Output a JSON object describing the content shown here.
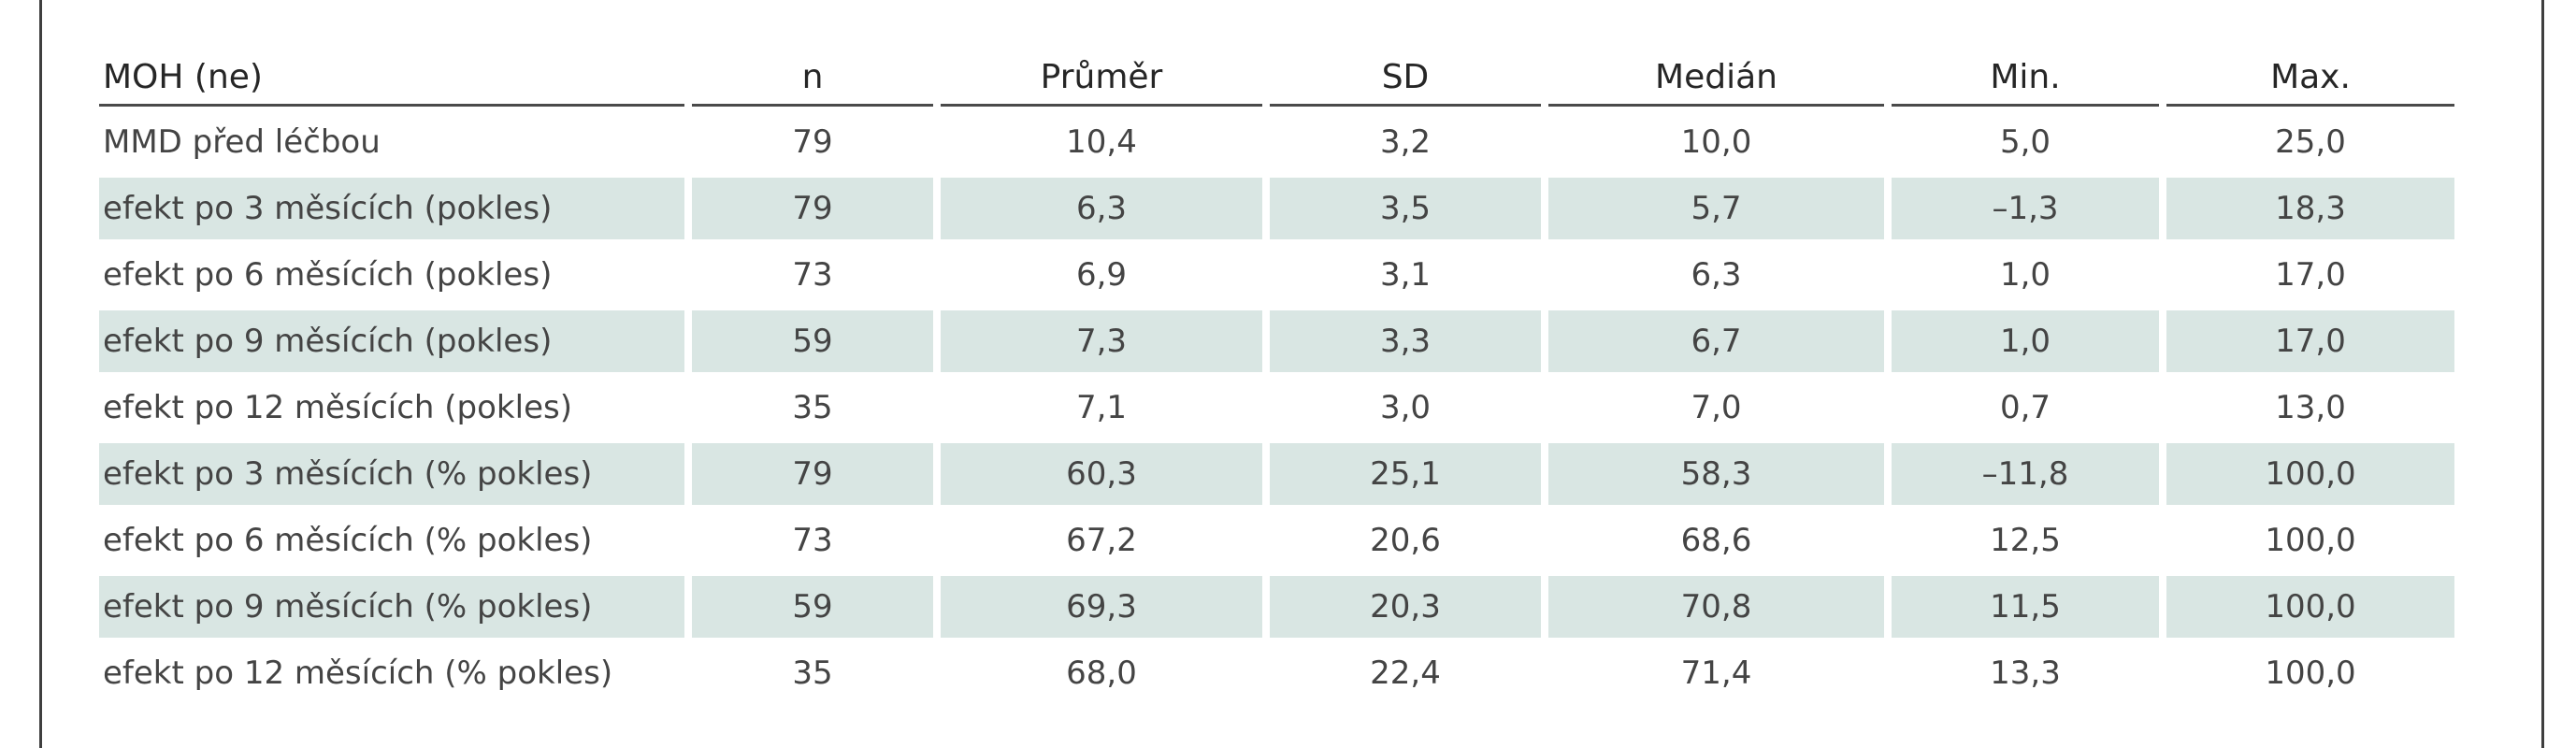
{
  "table": {
    "headers": [
      "MOH (ne)",
      "n",
      "Průměr",
      "SD",
      "Medián",
      "Min.",
      "Max."
    ],
    "rows": [
      [
        "MMD před léčbou",
        "79",
        "10,4",
        "3,2",
        "10,0",
        "5,0",
        "25,0"
      ],
      [
        "efekt po 3 měsících (pokles)",
        "79",
        "6,3",
        "3,5",
        "5,7",
        "–1,3",
        "18,3"
      ],
      [
        "efekt po 6 měsících (pokles)",
        "73",
        "6,9",
        "3,1",
        "6,3",
        "1,0",
        "17,0"
      ],
      [
        "efekt po 9 měsících (pokles)",
        "59",
        "7,3",
        "3,3",
        "6,7",
        "1,0",
        "17,0"
      ],
      [
        "efekt po 12 měsících (pokles)",
        "35",
        "7,1",
        "3,0",
        "7,0",
        "0,7",
        "13,0"
      ],
      [
        "efekt po 3 měsících (% pokles)",
        "79",
        "60,3",
        "25,1",
        "58,3",
        "–11,8",
        "100,0"
      ],
      [
        "efekt po 6 měsících (% pokles)",
        "73",
        "67,2",
        "20,6",
        "68,6",
        "12,5",
        "100,0"
      ],
      [
        "efekt po 9 měsících (% pokles)",
        "59",
        "69,3",
        "20,3",
        "70,8",
        "11,5",
        "100,0"
      ],
      [
        "efekt po 12 měsících (% pokles)",
        "35",
        "68,0",
        "22,4",
        "71,4",
        "13,3",
        "100,0"
      ]
    ],
    "shaded_rows": [
      1,
      3,
      5,
      7
    ],
    "shade_color": "#d9e6e3"
  }
}
